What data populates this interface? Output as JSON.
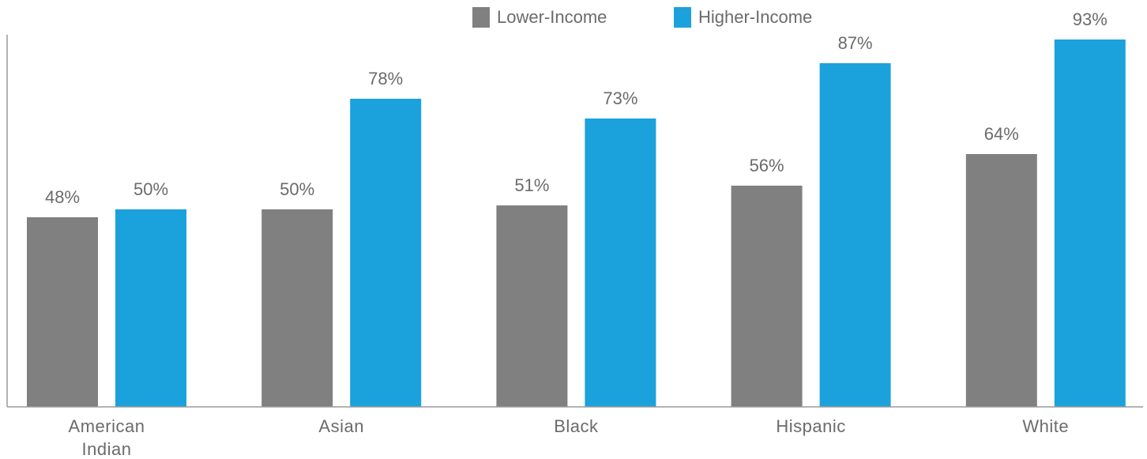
{
  "chart_data": {
    "type": "bar",
    "title": "",
    "xlabel": "",
    "ylabel": "",
    "ylim": [
      0,
      100
    ],
    "grid": false,
    "legend_position": "top-center",
    "categories": [
      [
        "American",
        "Indian"
      ],
      [
        "Asian"
      ],
      [
        "Black"
      ],
      [
        "Hispanic"
      ],
      [
        "White"
      ]
    ],
    "series": [
      {
        "name": "Lower-Income",
        "color": "#808080",
        "values": [
          48,
          50,
          51,
          56,
          64
        ]
      },
      {
        "name": "Higher-Income",
        "color": "#1ba1dc",
        "values": [
          50,
          78,
          73,
          87,
          93
        ]
      }
    ],
    "value_suffix": "%"
  }
}
